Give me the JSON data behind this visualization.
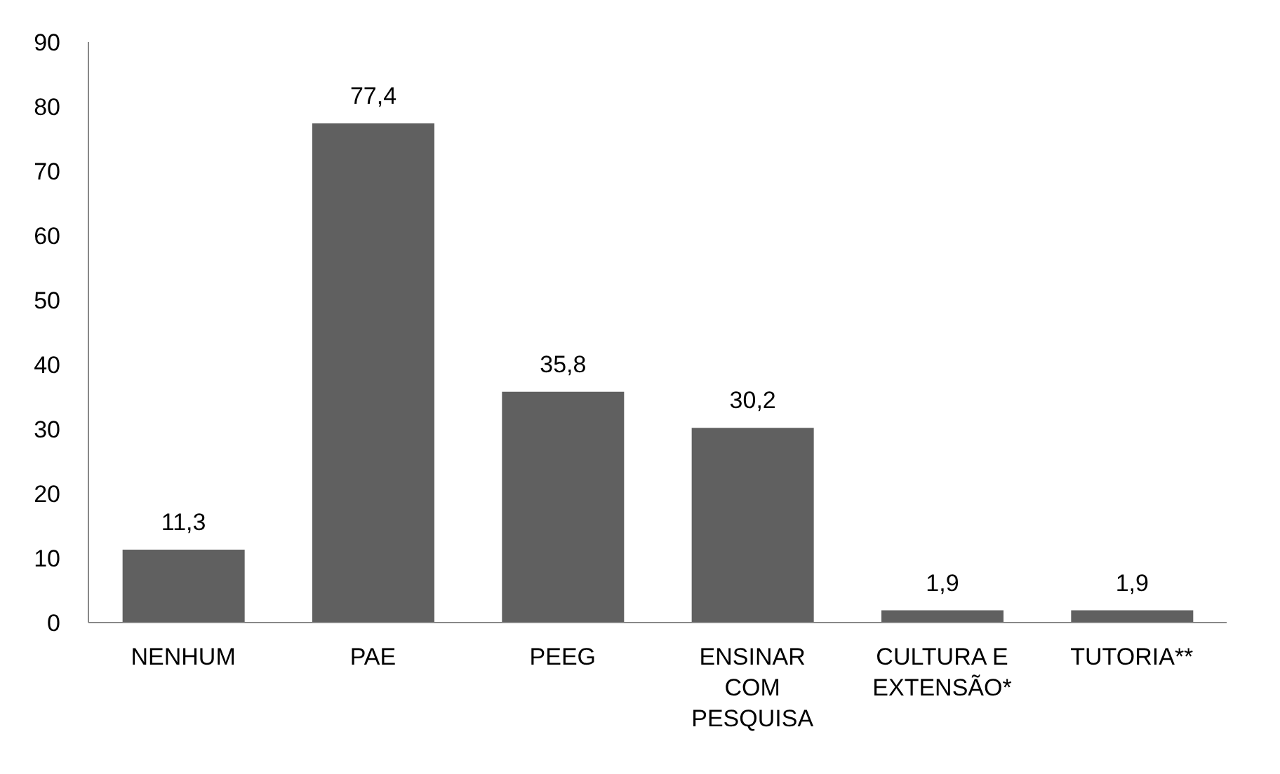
{
  "chart_data": {
    "type": "bar",
    "categories": [
      "NENHUM",
      "PAE",
      "PEEG",
      "ENSINAR COM PESQUISA",
      "CULTURA E EXTENSÃO*",
      "TUTORIA**"
    ],
    "values": [
      11.3,
      77.4,
      35.8,
      30.2,
      1.9,
      1.9
    ],
    "color": "#606060",
    "ylim": [
      0,
      90
    ],
    "yticks": [
      0,
      10,
      20,
      30,
      40,
      50,
      60,
      70,
      80,
      90
    ],
    "value_labels": [
      "11,3",
      "77,4",
      "35,8",
      "30,2",
      "1,9",
      "1,9"
    ]
  }
}
